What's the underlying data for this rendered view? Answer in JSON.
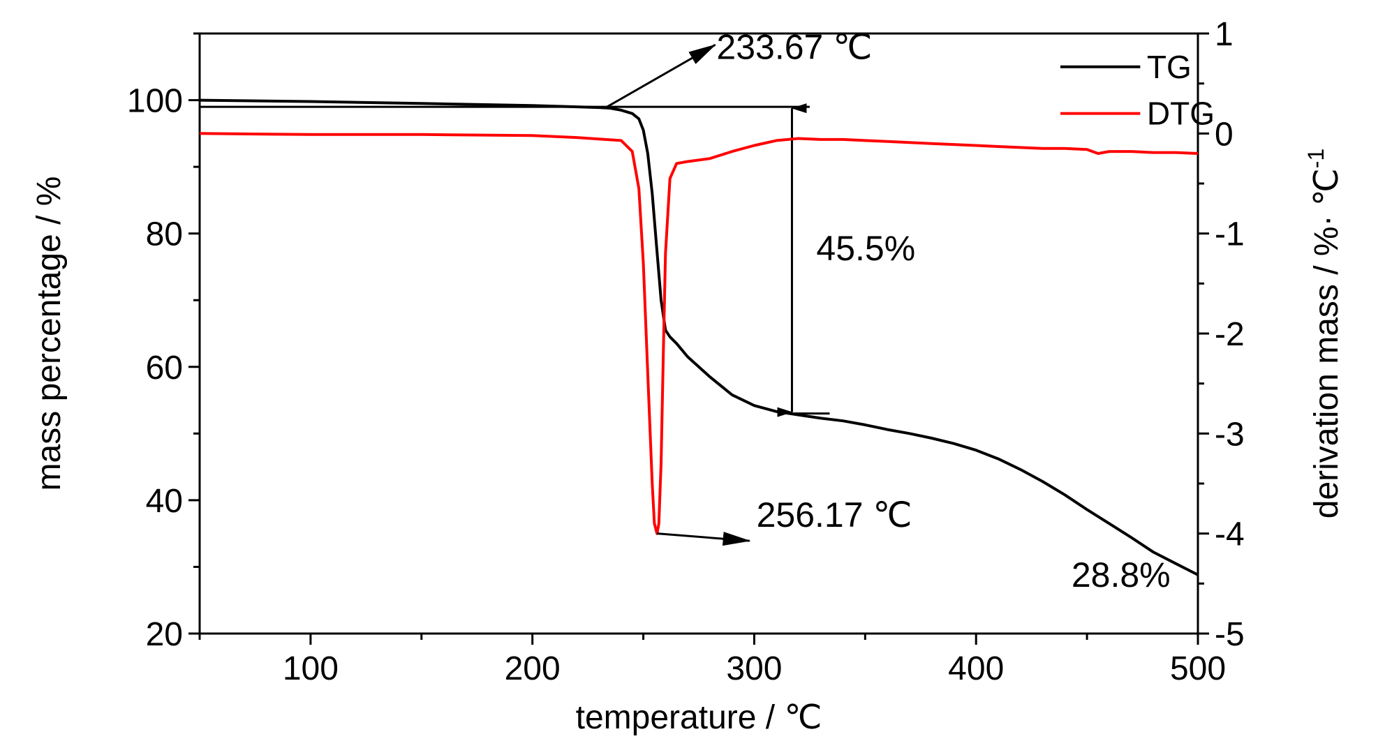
{
  "chart_data": {
    "type": "line",
    "xlabel": "temperature / ℃",
    "ylabel_left": "mass percentage / %",
    "ylabel_right": "derivation mass / %· ℃",
    "ylabel_right_superscript": "-1",
    "xlim": [
      50,
      500
    ],
    "ylim_left": [
      20,
      110
    ],
    "ylim_right": [
      -5,
      1
    ],
    "x_ticks": [
      100,
      200,
      300,
      400,
      500
    ],
    "y_left_ticks": [
      20,
      40,
      60,
      80,
      100
    ],
    "y_right_ticks": [
      -5,
      -4,
      -3,
      -2,
      -1,
      0,
      1
    ],
    "grid": false,
    "legend": {
      "placement": "top-right",
      "entries": [
        "TG",
        "DTG"
      ]
    },
    "series": [
      {
        "name": "TG",
        "axis": "left",
        "color": "#000000",
        "x": [
          50,
          100,
          150,
          200,
          220,
          230,
          235,
          240,
          245,
          248,
          250,
          252,
          254,
          256,
          258,
          260,
          262,
          265,
          270,
          280,
          290,
          300,
          310,
          320,
          330,
          340,
          350,
          360,
          370,
          380,
          390,
          400,
          410,
          420,
          430,
          440,
          450,
          460,
          470,
          480,
          490,
          500
        ],
        "y": [
          100,
          99.8,
          99.5,
          99.2,
          99.0,
          98.9,
          98.8,
          98.5,
          98.0,
          97.2,
          95.5,
          92,
          86,
          78,
          70,
          65.5,
          64.5,
          63.5,
          61.5,
          58.5,
          55.8,
          54.2,
          53.3,
          52.8,
          52.3,
          51.9,
          51.3,
          50.6,
          50.0,
          49.3,
          48.5,
          47.5,
          46.2,
          44.6,
          42.8,
          40.8,
          38.6,
          36.5,
          34.4,
          32.2,
          30.5,
          28.8
        ]
      },
      {
        "name": "DTG",
        "axis": "right",
        "color": "#ff0000",
        "x": [
          50,
          100,
          150,
          200,
          220,
          240,
          245,
          248,
          250,
          252,
          254,
          255,
          256.17,
          257,
          258,
          259,
          260,
          262,
          265,
          270,
          280,
          290,
          300,
          310,
          320,
          330,
          340,
          350,
          360,
          370,
          380,
          390,
          400,
          410,
          420,
          430,
          440,
          450,
          455,
          460,
          470,
          480,
          490,
          500
        ],
        "y": [
          0.0,
          -0.01,
          -0.01,
          -0.02,
          -0.04,
          -0.07,
          -0.18,
          -0.55,
          -1.3,
          -2.4,
          -3.5,
          -3.9,
          -4.0,
          -3.9,
          -3.3,
          -2.2,
          -1.2,
          -0.45,
          -0.3,
          -0.28,
          -0.25,
          -0.18,
          -0.12,
          -0.07,
          -0.05,
          -0.06,
          -0.06,
          -0.07,
          -0.08,
          -0.09,
          -0.1,
          -0.11,
          -0.12,
          -0.13,
          -0.14,
          -0.15,
          -0.15,
          -0.16,
          -0.2,
          -0.18,
          -0.18,
          -0.19,
          -0.19,
          -0.2
        ]
      }
    ],
    "annotations": [
      {
        "text": "233.67 ℃",
        "x": 283,
        "y": 106.2,
        "axis": "left",
        "arrow_from": [
          233.67,
          99.0
        ]
      },
      {
        "text": "256.17 ℃",
        "x": 301,
        "y": 36.0,
        "axis": "left",
        "arrow_from_right_axis": [
          256.17,
          -4.0
        ]
      },
      {
        "text": "45.5%",
        "x": 328,
        "y": 76.0,
        "axis": "left"
      },
      {
        "text": "28.8%",
        "x": 443,
        "y": 27.0,
        "axis": "left"
      }
    ],
    "guides": {
      "onset_line": {
        "x_start": 50,
        "x_end": 325,
        "y": 99.0
      },
      "step_arrow": {
        "x": 317,
        "y_top": 99.0,
        "y_bottom": 53.0
      },
      "lower_line": {
        "x_start": 317,
        "x_end": 334,
        "y": 53.0
      }
    }
  }
}
